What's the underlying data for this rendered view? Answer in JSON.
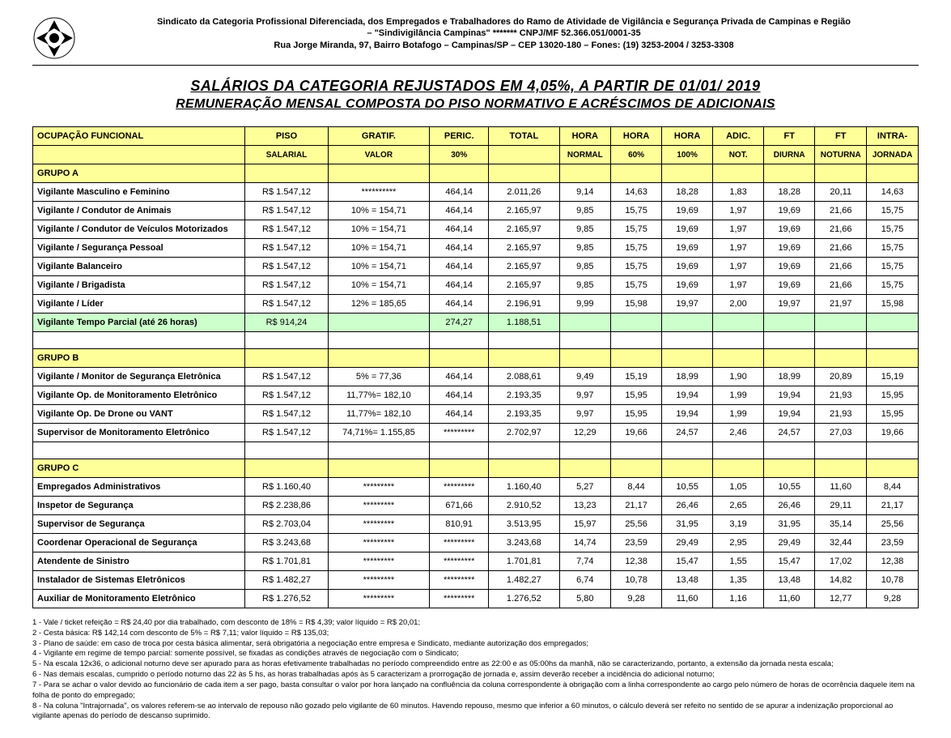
{
  "header": {
    "line1": "Sindicato da Categoria Profissional Diferenciada, dos Empregados e Trabalhadores do Ramo de Atividade de Vigilância e Segurança Privada de Campinas e Região",
    "line2": "– \"Sindivigilância Campinas\"   *******   CNPJ/MF 52.366.051/0001-35",
    "line3": "Rua Jorge Miranda, 97, Bairro Botafogo – Campinas/SP – CEP 13020-180 – Fones: (19) 3253-2004 / 3253-3308"
  },
  "title": {
    "main": "SALÁRIOS DA CATEGORIA REJUSTADOS EM 4,05%, A PARTIR DE 01/01/ 2019",
    "sub": "REMUNERAÇÃO MENSAL COMPOSTA DO PISO NORMATIVO E ACRÉSCIMOS DE ADICIONAIS"
  },
  "columns": {
    "h1": [
      "OCUPAÇÃO FUNCIONAL",
      "PISO",
      "GRATIF.",
      "PERIC.",
      "TOTAL",
      "HORA",
      "HORA",
      "HORA",
      "ADIC.",
      "FT",
      "FT",
      "INTRA-"
    ],
    "h2": [
      "",
      "SALARIAL",
      "VALOR",
      "30%",
      "",
      "NORMAL",
      "60%",
      "100%",
      "NOT.",
      "DIURNA",
      "NOTURNA",
      "JORNADA"
    ]
  },
  "groupA": {
    "label": "GRUPO A",
    "rows": [
      [
        "Vigilante Masculino e Feminino",
        "R$ 1.547,12",
        "**********",
        "464,14",
        "2.011,26",
        "9,14",
        "14,63",
        "18,28",
        "1,83",
        "18,28",
        "20,11",
        "14,63"
      ],
      [
        "Vigilante / Condutor de Animais",
        "R$ 1.547,12",
        "10% = 154,71",
        "464,14",
        "2.165,97",
        "9,85",
        "15,75",
        "19,69",
        "1,97",
        "19,69",
        "21,66",
        "15,75"
      ],
      [
        "Vigilante / Condutor de Veículos Motorizados",
        "R$ 1.547,12",
        "10% = 154,71",
        "464,14",
        "2.165,97",
        "9,85",
        "15,75",
        "19,69",
        "1,97",
        "19,69",
        "21,66",
        "15,75"
      ],
      [
        "Vigilante / Segurança Pessoal",
        "R$ 1.547,12",
        "10% = 154,71",
        "464,14",
        "2.165,97",
        "9,85",
        "15,75",
        "19,69",
        "1,97",
        "19,69",
        "21,66",
        "15,75"
      ],
      [
        "Vigilante Balanceiro",
        "R$ 1.547,12",
        "10% = 154,71",
        "464,14",
        "2.165,97",
        "9,85",
        "15,75",
        "19,69",
        "1,97",
        "19,69",
        "21,66",
        "15,75"
      ],
      [
        "Vigilante / Brigadista",
        "R$ 1.547,12",
        "10% = 154,71",
        "464,14",
        "2.165,97",
        "9,85",
        "15,75",
        "19,69",
        "1,97",
        "19,69",
        "21,66",
        "15,75"
      ],
      [
        "Vigilante / Líder",
        "R$ 1.547,12",
        "12% = 185,65",
        "464,14",
        "2.196,91",
        "9,99",
        "15,98",
        "19,97",
        "2,00",
        "19,97",
        "21,97",
        "15,98"
      ]
    ],
    "highlight": [
      "Vigilante Tempo Parcial (até 26 horas)",
      "R$    914,24",
      "",
      "274,27",
      "1.188,51",
      "",
      "",
      "",
      "",
      "",
      "",
      ""
    ]
  },
  "groupB": {
    "label": "GRUPO B",
    "rows": [
      [
        "Vigilante / Monitor de Segurança Eletrônica",
        "R$ 1.547,12",
        "5% = 77,36",
        "464,14",
        "2.088,61",
        "9,49",
        "15,19",
        "18,99",
        "1,90",
        "18,99",
        "20,89",
        "15,19"
      ],
      [
        "Vigilante Op. de Monitoramento Eletrônico",
        "R$ 1.547,12",
        "11,77%= 182,10",
        "464,14",
        "2.193,35",
        "9,97",
        "15,95",
        "19,94",
        "1,99",
        "19,94",
        "21,93",
        "15,95"
      ],
      [
        "Vigilante Op. De Drone ou VANT",
        "R$ 1.547,12",
        "11,77%= 182,10",
        "464,14",
        "2.193,35",
        "9,97",
        "15,95",
        "19,94",
        "1,99",
        "19,94",
        "21,93",
        "15,95"
      ],
      [
        "Supervisor de Monitoramento Eletrônico",
        "R$ 1.547,12",
        "74,71%= 1.155,85",
        "*********",
        "2.702,97",
        "12,29",
        "19,66",
        "24,57",
        "2,46",
        "24,57",
        "27,03",
        "19,66"
      ]
    ]
  },
  "groupC": {
    "label": "GRUPO C",
    "rows": [
      [
        "Empregados Administrativos",
        "R$ 1.160,40",
        "*********",
        "*********",
        "1.160,40",
        "5,27",
        "8,44",
        "10,55",
        "1,05",
        "10,55",
        "11,60",
        "8,44"
      ],
      [
        "Inspetor de Segurança",
        "R$ 2.238,86",
        "*********",
        "671,66",
        "2.910,52",
        "13,23",
        "21,17",
        "26,46",
        "2,65",
        "26,46",
        "29,11",
        "21,17"
      ],
      [
        "Supervisor de Segurança",
        "R$ 2.703,04",
        "*********",
        "810,91",
        "3.513,95",
        "15,97",
        "25,56",
        "31,95",
        "3,19",
        "31,95",
        "35,14",
        "25,56"
      ],
      [
        "Coordenar Operacional de Segurança",
        "R$ 3.243,68",
        "*********",
        "*********",
        "3.243,68",
        "14,74",
        "23,59",
        "29,49",
        "2,95",
        "29,49",
        "32,44",
        "23,59"
      ],
      [
        "Atendente de Sinistro",
        "R$ 1.701,81",
        "*********",
        "*********",
        "1.701,81",
        "7,74",
        "12,38",
        "15,47",
        "1,55",
        "15,47",
        "17,02",
        "12,38"
      ],
      [
        "Instalador de Sistemas Eletrônicos",
        "R$ 1.482,27",
        "*********",
        "*********",
        "1.482,27",
        "6,74",
        "10,78",
        "13,48",
        "1,35",
        "13,48",
        "14,82",
        "10,78"
      ],
      [
        "Auxiliar de Monitoramento Eletrônico",
        "R$ 1.276,52",
        "*********",
        "*********",
        "1.276,52",
        "5,80",
        "9,28",
        "11,60",
        "1,16",
        "11,60",
        "12,77",
        "9,28"
      ]
    ]
  },
  "footnotes": [
    "1 - Vale / ticket refeição = R$ 24,40 por dia trabalhado, com desconto de 18% = R$ 4,39; valor líquido = R$ 20,01;",
    "2 - Cesta básica: R$ 142,14 com desconto de 5% = R$ 7,11; valor líquido = R$ 135,03;",
    "3 - Plano de saúde: em caso de troca por cesta básica alimentar, será obrigatória a negociação entre empresa e Sindicato, mediante autorização dos empregados;",
    "4 - Vigilante em regime de tempo parcial: somente possível, se fixadas as condições através de negociação com o Sindicato;",
    "5 - Na escala 12x36, o adicional noturno deve ser apurado para as horas efetivamente trabalhadas no período compreendido entre as 22:00 e as 05:00hs da manhã, não se caracterizando, portanto, a extensão da jornada nesta escala;",
    "6 - Nas demais escalas, cumprido o período noturno das 22 às 5 hs, as horas trabalhadas após às 5 caracterizam a prorrogação de jornada e, assim deverão receber a incidência do adicional noturno;",
    "7 - Para se achar o valor devido ao funcionário de cada item a ser pago, basta consultar o valor por hora lançado na confluência da coluna correspondente à obrigação com a linha correspondente ao cargo pelo número de horas de ocorrência daquele item na folha de ponto do empregado;",
    "8 - Na coluna \"Intrajornada\", os valores referem-se ao intervalo de repouso não gozado pelo vigilante de 60 minutos. Havendo repouso, mesmo que inferior a 60 minutos, o cálculo deverá ser refeito no sentido de se apurar a indenização proporcional ao vigilante apenas do período de descanso suprimido."
  ]
}
